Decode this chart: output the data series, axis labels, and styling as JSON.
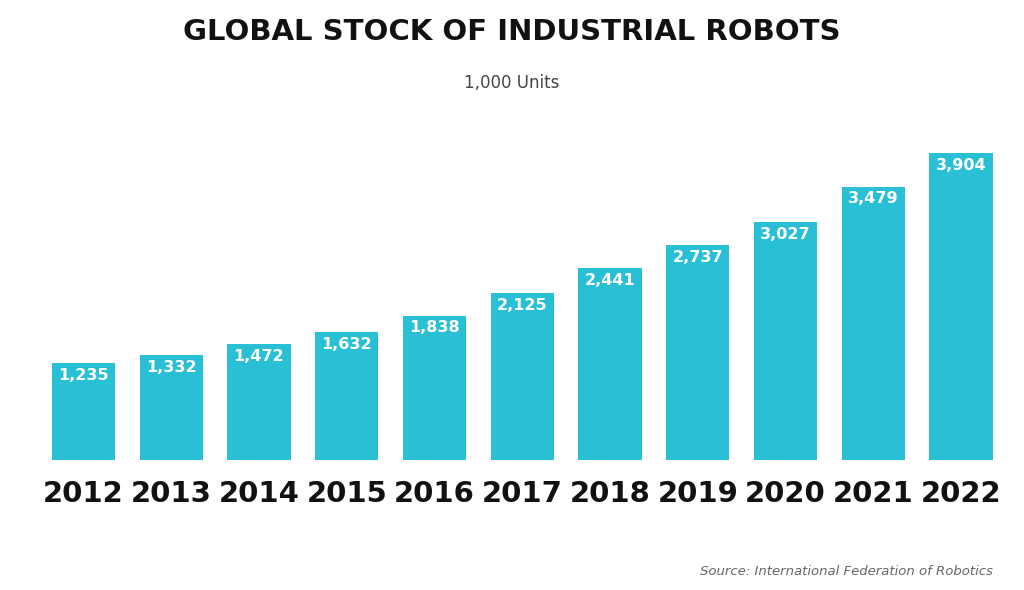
{
  "title": "GLOBAL STOCK OF INDUSTRIAL ROBOTS",
  "subtitle": "1,000 Units",
  "source": "Source: International Federation of Robotics",
  "years": [
    2012,
    2013,
    2014,
    2015,
    2016,
    2017,
    2018,
    2019,
    2020,
    2021,
    2022
  ],
  "values": [
    1235,
    1332,
    1472,
    1632,
    1838,
    2125,
    2441,
    2737,
    3027,
    3479,
    3904
  ],
  "labels": [
    "1,235",
    "1,332",
    "1,472",
    "1,632",
    "1,838",
    "2,125",
    "2,441",
    "2,737",
    "3,027",
    "3,479",
    "3,904"
  ],
  "bar_color": "#29BFD4",
  "background_color": "#ffffff",
  "label_color": "#ffffff",
  "title_color": "#111111",
  "subtitle_color": "#444444",
  "source_color": "#666666",
  "xticklabel_color": "#111111",
  "bar_width": 0.72,
  "ylim": [
    0,
    4500
  ],
  "title_fontsize": 21,
  "subtitle_fontsize": 12,
  "label_fontsize": 11.5,
  "xticklabel_fontsize": 21,
  "source_fontsize": 9.5
}
